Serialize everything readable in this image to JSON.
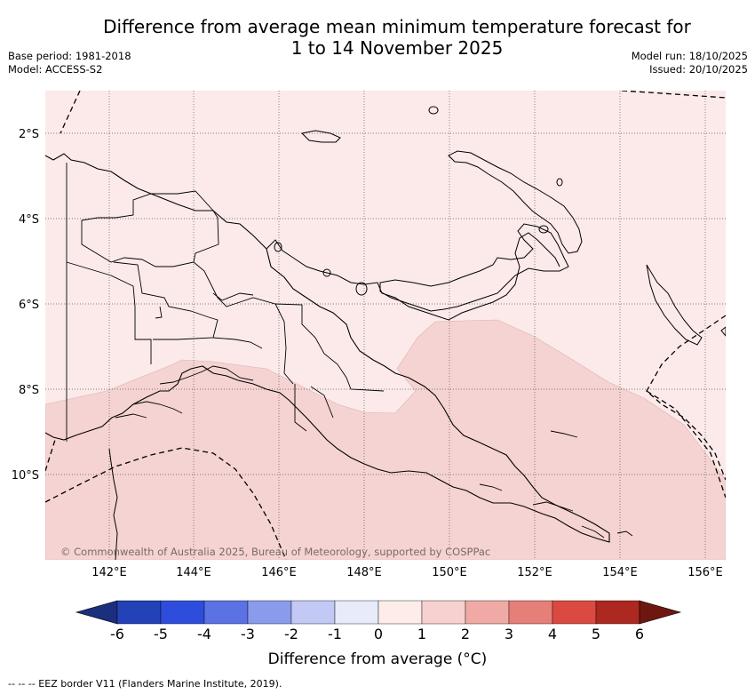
{
  "title": {
    "line1": "Difference from average mean minimum temperature forecast for",
    "line2": "1 to 14 November 2025"
  },
  "meta": {
    "base_period": "Base period: 1981-2018",
    "model": "Model: ACCESS-S2",
    "model_run": "Model run: 18/10/2025",
    "issued": "Issued: 20/10/2025"
  },
  "map": {
    "lat_labels": [
      "2°S",
      "4°S",
      "6°S",
      "8°S",
      "10°S"
    ],
    "lon_labels": [
      "142°E",
      "144°E",
      "146°E",
      "148°E",
      "150°E",
      "152°E",
      "154°E",
      "156°E"
    ],
    "copyright": "© Commonwealth of Australia 2025, Bureau of Meteorology, supported by COSPPac",
    "fill_colors": {
      "anomaly_0_1": "#fbeae9",
      "anomaly_1_2": "#f5d3d2",
      "land_outline": "#000000"
    }
  },
  "colorbar": {
    "title": "Difference from average (°C)",
    "tick_labels": [
      "-6",
      "-5",
      "-4",
      "-3",
      "-2",
      "-1",
      "0",
      "1",
      "2",
      "3",
      "4",
      "5",
      "6"
    ],
    "colors": [
      "#1b2f7e",
      "#2442b8",
      "#2f4ddc",
      "#5a72e4",
      "#8a9bec",
      "#c2c9f4",
      "#e7ebfa",
      "#fdecea",
      "#f6d1cf",
      "#f0aaa5",
      "#e67f78",
      "#db4a40",
      "#ad2820",
      "#6d1710"
    ]
  },
  "legend_note": "-- -- -- EEZ border V11 (Flanders Marine Institute, 2019)."
}
